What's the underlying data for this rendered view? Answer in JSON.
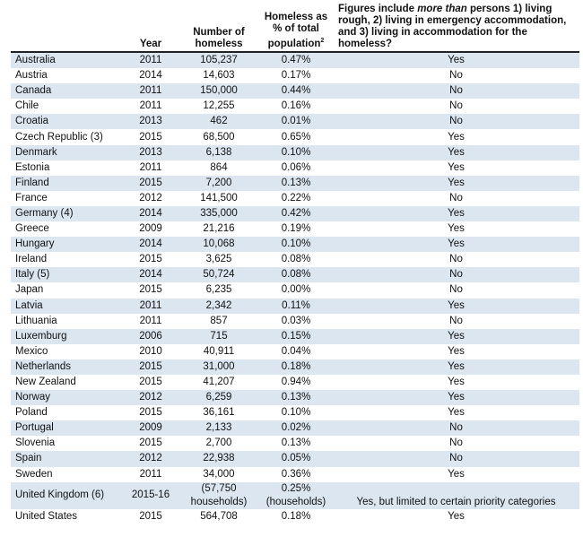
{
  "header": {
    "country": "",
    "year": "Year",
    "number": "Number of homeless",
    "percent": "Homeless as % of total population",
    "percent_sup": "2",
    "figures_pre": "Figures include ",
    "figures_em": "more than",
    "figures_post": " persons 1) living rough, 2) living in emergency accommodation, and 3) living in accommodation for the homeless?"
  },
  "rows": [
    {
      "country": "Australia",
      "year": "2011",
      "number": "105,237",
      "percent": "0.47%",
      "figures": "Yes"
    },
    {
      "country": "Austria",
      "year": "2014",
      "number": "14,603",
      "percent": "0.17%",
      "figures": "No"
    },
    {
      "country": "Canada",
      "year": "2011",
      "number": "150,000",
      "percent": "0.44%",
      "figures": "No"
    },
    {
      "country": "Chile",
      "year": "2011",
      "number": "12,255",
      "percent": "0.16%",
      "figures": "No"
    },
    {
      "country": "Croatia",
      "year": "2013",
      "number": "462",
      "percent": "0.01%",
      "figures": "No"
    },
    {
      "country": "Czech Republic (3)",
      "year": "2015",
      "number": "68,500",
      "percent": "0.65%",
      "figures": "Yes"
    },
    {
      "country": "Denmark",
      "year": "2013",
      "number": "6,138",
      "percent": "0.10%",
      "figures": "Yes"
    },
    {
      "country": "Estonia",
      "year": "2011",
      "number": "864",
      "percent": "0.06%",
      "figures": "Yes"
    },
    {
      "country": "Finland",
      "year": "2015",
      "number": "7,200",
      "percent": "0.13%",
      "figures": "Yes"
    },
    {
      "country": "France",
      "year": "2012",
      "number": "141,500",
      "percent": "0.22%",
      "figures": "No"
    },
    {
      "country": "Germany (4)",
      "year": "2014",
      "number": "335,000",
      "percent": "0.42%",
      "figures": "Yes"
    },
    {
      "country": "Greece",
      "year": "2009",
      "number": "21,216",
      "percent": "0.19%",
      "figures": "Yes"
    },
    {
      "country": "Hungary",
      "year": "2014",
      "number": "10,068",
      "percent": "0.10%",
      "figures": "Yes"
    },
    {
      "country": "Ireland",
      "year": "2015",
      "number": "3,625",
      "percent": "0.08%",
      "figures": "No"
    },
    {
      "country": "Italy (5)",
      "year": "2014",
      "number": "50,724",
      "percent": "0.08%",
      "figures": "No"
    },
    {
      "country": "Japan",
      "year": "2015",
      "number": "6,235",
      "percent": "0.00%",
      "figures": "No"
    },
    {
      "country": "Latvia",
      "year": "2011",
      "number": "2,342",
      "percent": "0.11%",
      "figures": "Yes"
    },
    {
      "country": "Lithuania",
      "year": "2011",
      "number": "857",
      "percent": "0.03%",
      "figures": "No"
    },
    {
      "country": "Luxemburg",
      "year": "2006",
      "number": "715",
      "percent": "0.15%",
      "figures": "Yes"
    },
    {
      "country": "Mexico",
      "year": "2010",
      "number": "40,911",
      "percent": "0.04%",
      "figures": "Yes"
    },
    {
      "country": "Netherlands",
      "year": "2015",
      "number": "31,000",
      "percent": "0.18%",
      "figures": "Yes"
    },
    {
      "country": "New Zealand",
      "year": "2015",
      "number": "41,207",
      "percent": "0.94%",
      "figures": "Yes"
    },
    {
      "country": "Norway",
      "year": "2012",
      "number": "6,259",
      "percent": "0.13%",
      "figures": "Yes"
    },
    {
      "country": "Poland",
      "year": "2015",
      "number": "36,161",
      "percent": "0.10%",
      "figures": "Yes"
    },
    {
      "country": "Portugal",
      "year": "2009",
      "number": "2,133",
      "percent": "0.02%",
      "figures": "No"
    },
    {
      "country": "Slovenia",
      "year": "2015",
      "number": "2,700",
      "percent": "0.13%",
      "figures": "No"
    },
    {
      "country": "Spain",
      "year": "2012",
      "number": "22,938",
      "percent": "0.05%",
      "figures": "No"
    },
    {
      "country": "Sweden",
      "year": "2011",
      "number": "34,000",
      "percent": "0.36%",
      "figures": "Yes"
    },
    {
      "country": "United Kingdom (6)",
      "year": "2015-16",
      "number": "(57,750\nhouseholds)",
      "percent": "0.25%\n(households)",
      "figures": "Yes, but limited to certain priority categories"
    },
    {
      "country": "United States",
      "year": "2015",
      "number": "564,708",
      "percent": "0.18%",
      "figures": "Yes"
    }
  ],
  "colors": {
    "shaded_row": "#dce6f1",
    "header_rule": "#222222"
  }
}
